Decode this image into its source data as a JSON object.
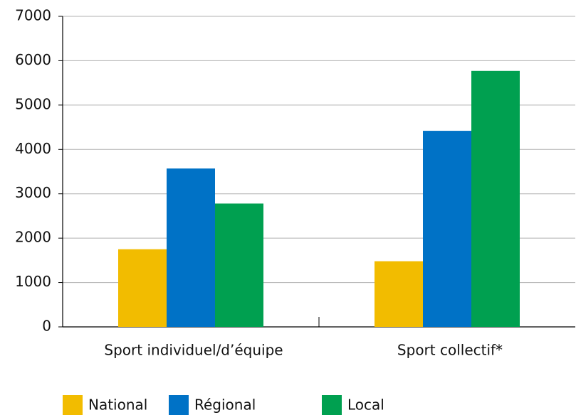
{
  "chart_data": {
    "type": "bar",
    "categories": [
      "Sport individuel/d’équipe",
      "Sport collectif*"
    ],
    "series": [
      {
        "name": "National",
        "color": "#f2bc00",
        "values": [
          1750,
          1480
        ]
      },
      {
        "name": "Régional",
        "color": "#0072c6",
        "values": [
          3570,
          4420
        ]
      },
      {
        "name": "Local",
        "color": "#00a050",
        "values": [
          2780,
          5770
        ]
      }
    ],
    "ylim": [
      0,
      7000
    ],
    "yticks": [
      0,
      1000,
      2000,
      3000,
      4000,
      5000,
      6000,
      7000
    ],
    "grid": true,
    "legend": "bottom"
  }
}
